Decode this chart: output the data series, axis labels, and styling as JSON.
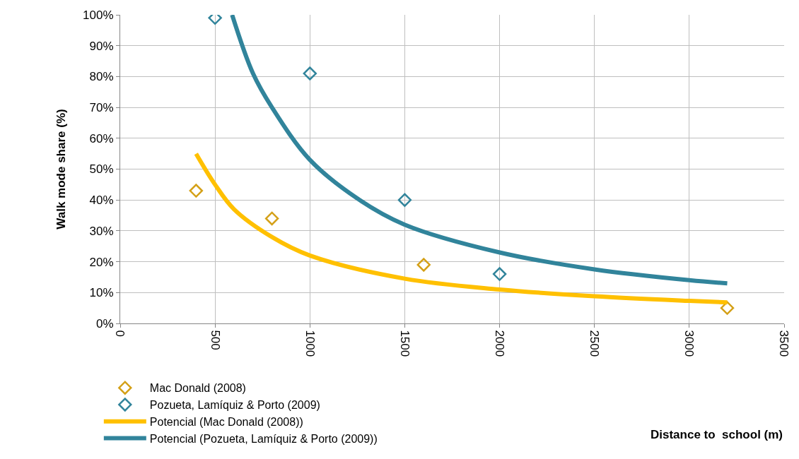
{
  "chart_data": {
    "type": "scatter",
    "annotations": [
      "Distance to  school (m)"
    ],
    "ylabel": "Walk mode share (%)",
    "xlim": [
      0,
      3500
    ],
    "xticks": [
      0,
      500,
      1000,
      1500,
      2000,
      2500,
      3000,
      3500
    ],
    "ylim": [
      0,
      100
    ],
    "yticks": [
      {
        "value": 0,
        "label": "0%"
      },
      {
        "value": 10,
        "label": "10%"
      },
      {
        "value": 20,
        "label": "20%"
      },
      {
        "value": 30,
        "label": "30%"
      },
      {
        "value": 40,
        "label": "40%"
      },
      {
        "value": 50,
        "label": "50%"
      },
      {
        "value": 60,
        "label": "60%"
      },
      {
        "value": 70,
        "label": "70%"
      },
      {
        "value": 80,
        "label": "80%"
      },
      {
        "value": 90,
        "label": "90%"
      },
      {
        "value": 100,
        "label": "100%"
      }
    ],
    "grid": true,
    "legend": "bottom left",
    "marker": "diamond",
    "series": [
      {
        "name": "Mac Donald (2008)",
        "color": "#d4a017",
        "x": [
          400,
          800,
          1600,
          3200
        ],
        "values": [
          43,
          34,
          19,
          5
        ]
      },
      {
        "name": "Pozueta, Lamíquiz & Porto (2009)",
        "color": "#31849b",
        "x": [
          500,
          1000,
          1500,
          2000
        ],
        "values": [
          99,
          81,
          40,
          16
        ]
      },
      {
        "name": "Potencial (Mac Donald (2008))",
        "type": "line",
        "color": "#ffc000",
        "marker": "none",
        "line_style": "solid",
        "x": [
          400,
          500,
          600,
          800,
          1000,
          1500,
          2000,
          2500,
          3000,
          3200
        ],
        "values": [
          55,
          45,
          37,
          28,
          22,
          14.5,
          11,
          8.8,
          7.3,
          6.8
        ]
      },
      {
        "name": "Potencial (Pozueta, Lamíquiz & Porto (2009))",
        "type": "line",
        "color": "#31849b",
        "marker": "none",
        "line_style": "solid",
        "x": [
          590,
          700,
          800,
          1000,
          1250,
          1500,
          2000,
          2500,
          3000,
          3200
        ],
        "values": [
          100,
          81,
          70,
          53,
          40.5,
          32,
          23,
          17.5,
          14,
          13
        ]
      }
    ]
  }
}
